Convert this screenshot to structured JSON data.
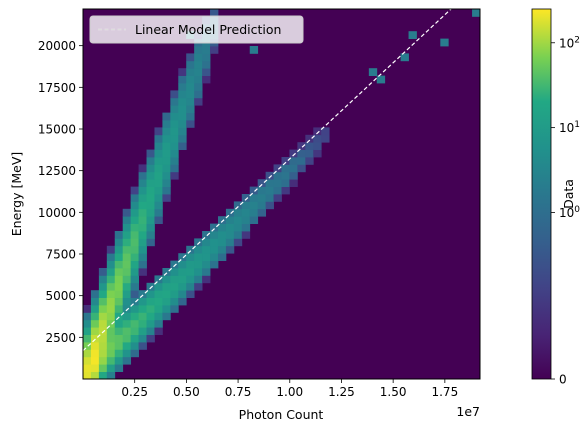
{
  "chart_data": {
    "type": "heatmap",
    "title": "",
    "xlabel": "Photon Count",
    "ylabel": "Energy [MeV]",
    "x_offset_label": "1e7",
    "x_range": [
      0,
      19200000
    ],
    "y_range": [
      0,
      22200
    ],
    "x_ticks": [
      2500000,
      5000000,
      7500000,
      10000000,
      12500000,
      15000000,
      17500000
    ],
    "x_tick_labels": [
      "0.25",
      "0.50",
      "0.75",
      "1.00",
      "1.25",
      "1.50",
      "1.75"
    ],
    "y_ticks": [
      2500,
      5000,
      7500,
      10000,
      12500,
      15000,
      17500,
      20000
    ],
    "y_tick_labels": [
      "2500",
      "5000",
      "7500",
      "10000",
      "12500",
      "15000",
      "17500",
      "20000"
    ],
    "bins": [
      50,
      50
    ],
    "colormap": "viridis",
    "colorbar": {
      "label": "Data",
      "scale": "symlog",
      "ticks": [
        0,
        1,
        10,
        100
      ],
      "tick_labels": [
        "0",
        "10^0",
        "10^1",
        "10^2"
      ],
      "max": 250
    },
    "background_color": "#440154",
    "legend": {
      "position": "upper-left",
      "entries": [
        "Linear Model Prediction"
      ]
    },
    "line": {
      "name": "Linear Model Prediction",
      "style": "dashed",
      "color": "#ffffff",
      "x": [
        0,
        17800000
      ],
      "y": [
        1700,
        22200
      ]
    },
    "branches": [
      {
        "x_start": 150000,
        "y_start": 300,
        "x_end": 6400000,
        "y_end": 21500,
        "scatter": 1000,
        "peak_count": 90
      },
      {
        "x_start": 150000,
        "y_start": 300,
        "x_end": 12000000,
        "y_end": 15000,
        "scatter": 600,
        "peak_count": 60
      }
    ],
    "outlier_points": [
      [
        17300000,
        20000
      ],
      [
        15800000,
        20500
      ],
      [
        19000000,
        22000
      ],
      [
        14200000,
        18500
      ],
      [
        15500000,
        19200
      ],
      [
        14500000,
        17800
      ],
      [
        8200000,
        19800
      ],
      [
        5000000,
        20500
      ]
    ]
  }
}
